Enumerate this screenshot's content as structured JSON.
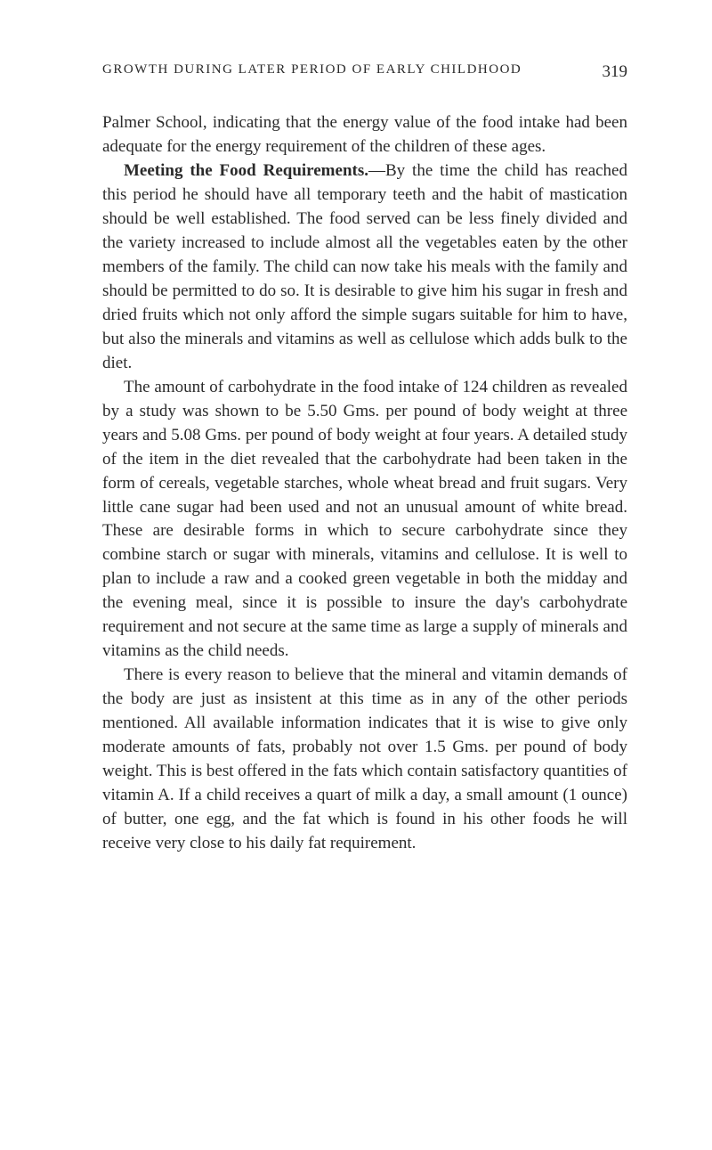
{
  "header": {
    "running_title": "GROWTH DURING LATER PERIOD OF EARLY CHILDHOOD",
    "page_number": "319"
  },
  "paragraphs": {
    "p1": "Palmer School, indicating that the energy value of the food intake had been adequate for the energy requirement of the children of these ages.",
    "p2_heading": "Meeting the Food Requirements.",
    "p2_body": "—By the time the child has reached this period he should have all temporary teeth and the habit of mastication should be well established. The food served can be less finely divided and the variety increased to include almost all the vegetables eaten by the other members of the family. The child can now take his meals with the family and should be permitted to do so. It is desirable to give him his sugar in fresh and dried fruits which not only afford the simple sugars suitable for him to have, but also the minerals and vitamins as well as cellulose which adds bulk to the diet.",
    "p3": "The amount of carbohydrate in the food intake of 124 children as revealed by a study was shown to be 5.50 Gms. per pound of body weight at three years and 5.08 Gms. per pound of body weight at four years. A detailed study of the item in the diet revealed that the carbohydrate had been taken in the form of cereals, vegetable starches, whole wheat bread and fruit sugars. Very little cane sugar had been used and not an unusual amount of white bread. These are desirable forms in which to secure carbohydrate since they combine starch or sugar with minerals, vitamins and cellulose. It is well to plan to include a raw and a cooked green vegetable in both the midday and the evening meal, since it is possible to insure the day's carbohydrate requirement and not secure at the same time as large a supply of minerals and vitamins as the child needs.",
    "p4": "There is every reason to believe that the mineral and vitamin demands of the body are just as insistent at this time as in any of the other periods mentioned. All available information indicates that it is wise to give only moderate amounts of fats, probably not over 1.5 Gms. per pound of body weight. This is best offered in the fats which contain satisfactory quantities of vitamin A. If a child receives a quart of milk a day, a small amount (1 ounce) of butter, one egg, and the fat which is found in his other foods he will receive very close to his daily fat requirement."
  }
}
